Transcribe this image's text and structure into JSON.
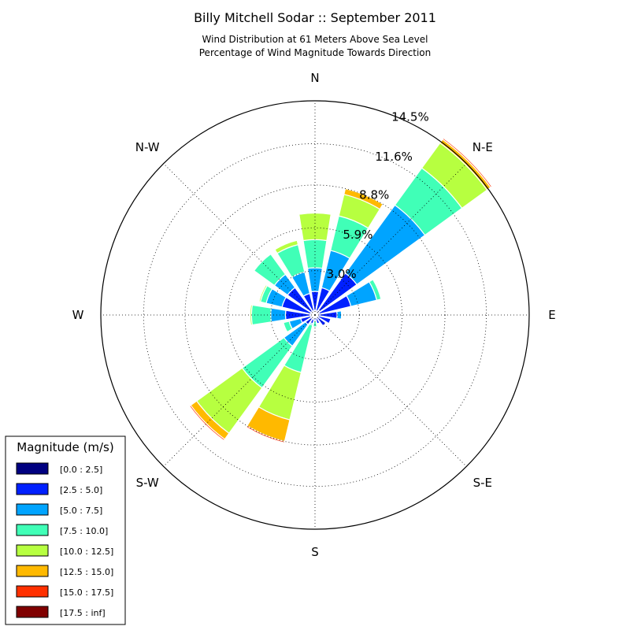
{
  "chart_data": {
    "type": "windrose",
    "title": "Billy Mitchell Sodar :: September 2011",
    "subtitle_lines": [
      "Wind Distribution at 61 Meters Above Sea Level",
      "Percentage of Wind Magnitude Towards Direction"
    ],
    "direction_labels": [
      "N",
      "N-E",
      "E",
      "S-E",
      "S",
      "S-W",
      "W",
      "N-W"
    ],
    "ring_values": [
      3.0,
      5.9,
      8.8,
      11.6,
      14.5
    ],
    "ring_labels": [
      "3.0%",
      "5.9%",
      "8.8%",
      "11.6%",
      "14.5%"
    ],
    "rmax": 14.5,
    "direction_bins": 16,
    "bin_angles_deg": [
      0,
      22.5,
      45,
      67.5,
      90,
      112.5,
      135,
      157.5,
      180,
      202.5,
      225,
      247.5,
      270,
      292.5,
      315,
      337.5
    ],
    "legend": {
      "title": "Magnitude (m/s)",
      "placement": "lower-left",
      "entries": [
        "[0.0 : 2.5]",
        "[2.5 : 5.0]",
        "[5.0 : 7.5]",
        "[7.5 : 10.0]",
        "[10.0 : 12.5]",
        "[12.5 : 15.0]",
        "[15.0 : 17.5]",
        "[17.5 : inf]"
      ]
    },
    "colors": [
      "#000080",
      "#0020ff",
      "#00a4ff",
      "#40ffb7",
      "#b7ff40",
      "#ffb900",
      "#ff3000",
      "#800000"
    ],
    "series": [
      {
        "bin": "[0.0 : 2.5]",
        "values": [
          0.3,
          0.3,
          0.4,
          0.3,
          0.2,
          0.2,
          0.2,
          0.2,
          0.2,
          0.3,
          0.3,
          0.3,
          0.3,
          0.3,
          0.3,
          0.3
        ]
      },
      {
        "bin": "[2.5 : 5.0]",
        "values": [
          1.3,
          1.6,
          3.1,
          2.2,
          1.3,
          0.9,
          0.7,
          0.4,
          0.2,
          0.3,
          0.5,
          0.7,
          1.7,
          2.0,
          2.0,
          1.2
        ]
      },
      {
        "bin": "[5.0 : 7.5]",
        "values": [
          1.6,
          2.6,
          5.7,
          1.8,
          0.3,
          0.0,
          0.0,
          0.0,
          0.0,
          0.1,
          1.8,
          0.8,
          1.0,
          1.1,
          1.1,
          1.5
        ]
      },
      {
        "bin": "[7.5 : 10.0]",
        "values": [
          1.9,
          2.4,
          3.1,
          0.3,
          0.0,
          0.0,
          0.0,
          0.0,
          0.4,
          3.3,
          3.5,
          0.4,
          1.3,
          0.4,
          1.7,
          1.9
        ]
      },
      {
        "bin": "[10.0 : 12.5]",
        "values": [
          1.8,
          1.5,
          2.1,
          0.0,
          0.0,
          0.0,
          0.0,
          0.0,
          0.0,
          3.3,
          3.8,
          0.0,
          0.1,
          0.1,
          0.0,
          0.3
        ]
      },
      {
        "bin": "[12.5 : 15.0]",
        "values": [
          0.0,
          0.4,
          0.3,
          0.0,
          0.0,
          0.0,
          0.0,
          0.0,
          0.0,
          1.5,
          0.5,
          0.0,
          0.0,
          0.0,
          0.0,
          0.0
        ]
      },
      {
        "bin": "[15.0 : 17.5]",
        "values": [
          0.0,
          0.0,
          0.1,
          0.0,
          0.0,
          0.0,
          0.0,
          0.0,
          0.0,
          0.1,
          0.1,
          0.0,
          0.0,
          0.0,
          0.0,
          0.0
        ]
      },
      {
        "bin": "[17.5 : inf]",
        "values": [
          0.0,
          0.0,
          0.05,
          0.0,
          0.0,
          0.0,
          0.0,
          0.0,
          0.0,
          0.05,
          0.0,
          0.0,
          0.0,
          0.0,
          0.0,
          0.0
        ]
      }
    ]
  }
}
